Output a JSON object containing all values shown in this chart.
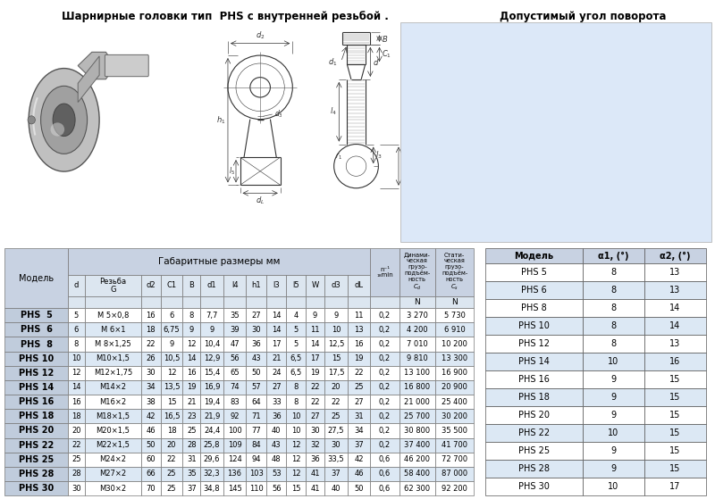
{
  "title_left": "Шарнирные головки тип  PHS с внутренней резьбой .",
  "title_right": "Допустимый угол поворота",
  "table1_data": [
    [
      "PHS  5",
      "5",
      "M 5×0,8",
      "16",
      "6",
      "8",
      "7,7",
      "35",
      "27",
      "14",
      "4",
      "9",
      "9",
      "11",
      "0,2",
      "3 270",
      "5 730"
    ],
    [
      "PHS  6",
      "6",
      "M 6×1",
      "18",
      "6,75",
      "9",
      "9",
      "39",
      "30",
      "14",
      "5",
      "11",
      "10",
      "13",
      "0,2",
      "4 200",
      "6 910"
    ],
    [
      "PHS  8",
      "8",
      "M 8×1,25",
      "22",
      "9",
      "12",
      "10,4",
      "47",
      "36",
      "17",
      "5",
      "14",
      "12,5",
      "16",
      "0,2",
      "7 010",
      "10 200"
    ],
    [
      "PHS 10",
      "10",
      "M10×1,5",
      "26",
      "10,5",
      "14",
      "12,9",
      "56",
      "43",
      "21",
      "6,5",
      "17",
      "15",
      "19",
      "0,2",
      "9 810",
      "13 300"
    ],
    [
      "PHS 12",
      "12",
      "M12×1,75",
      "30",
      "12",
      "16",
      "15,4",
      "65",
      "50",
      "24",
      "6,5",
      "19",
      "17,5",
      "22",
      "0,2",
      "13 100",
      "16 900"
    ],
    [
      "PHS 14",
      "14",
      "M14×2",
      "34",
      "13,5",
      "19",
      "16,9",
      "74",
      "57",
      "27",
      "8",
      "22",
      "20",
      "25",
      "0,2",
      "16 800",
      "20 900"
    ],
    [
      "PHS 16",
      "16",
      "M16×2",
      "38",
      "15",
      "21",
      "19,4",
      "83",
      "64",
      "33",
      "8",
      "22",
      "22",
      "27",
      "0,2",
      "21 000",
      "25 400"
    ],
    [
      "PHS 18",
      "18",
      "M18×1,5",
      "42",
      "16,5",
      "23",
      "21,9",
      "92",
      "71",
      "36",
      "10",
      "27",
      "25",
      "31",
      "0,2",
      "25 700",
      "30 200"
    ],
    [
      "PHS 20",
      "20",
      "M20×1,5",
      "46",
      "18",
      "25",
      "24,4",
      "100",
      "77",
      "40",
      "10",
      "30",
      "27,5",
      "34",
      "0,2",
      "30 800",
      "35 500"
    ],
    [
      "PHS 22",
      "22",
      "M22×1,5",
      "50",
      "20",
      "28",
      "25,8",
      "109",
      "84",
      "43",
      "12",
      "32",
      "30",
      "37",
      "0,2",
      "37 400",
      "41 700"
    ],
    [
      "PHS 25",
      "25",
      "M24×2",
      "60",
      "22",
      "31",
      "29,6",
      "124",
      "94",
      "48",
      "12",
      "36",
      "33,5",
      "42",
      "0,6",
      "46 200",
      "72 700"
    ],
    [
      "PHS 28",
      "28",
      "M27×2",
      "66",
      "25",
      "35",
      "32,3",
      "136",
      "103",
      "53",
      "12",
      "41",
      "37",
      "46",
      "0,6",
      "58 400",
      "87 000"
    ],
    [
      "PHS 30",
      "30",
      "M30×2",
      "70",
      "25",
      "37",
      "34,8",
      "145",
      "110",
      "56",
      "15",
      "41",
      "40",
      "50",
      "0,6",
      "62 300",
      "92 200"
    ]
  ],
  "table2_headers": [
    "Модель",
    "α1, (°)",
    "α2, (°)"
  ],
  "table2_data": [
    [
      "PHS 5",
      "8",
      "13"
    ],
    [
      "PHS 6",
      "8",
      "13"
    ],
    [
      "PHS 8",
      "8",
      "14"
    ],
    [
      "PHS 10",
      "8",
      "14"
    ],
    [
      "PHS 12",
      "8",
      "13"
    ],
    [
      "PHS 14",
      "10",
      "16"
    ],
    [
      "PHS 16",
      "9",
      "15"
    ],
    [
      "PHS 18",
      "9",
      "15"
    ],
    [
      "PHS 20",
      "9",
      "15"
    ],
    [
      "PHS 22",
      "10",
      "15"
    ],
    [
      "PHS 25",
      "9",
      "15"
    ],
    [
      "PHS 28",
      "9",
      "15"
    ],
    [
      "PHS 30",
      "10",
      "17"
    ]
  ],
  "header_bg": "#c8d2e2",
  "subheader_bg": "#dce6f0",
  "row_white": "#ffffff",
  "row_blue": "#dce8f4",
  "bold_col_bg": "#c0ccdc",
  "border_color": "#888888",
  "right_panel_bg": "#dce8f8"
}
